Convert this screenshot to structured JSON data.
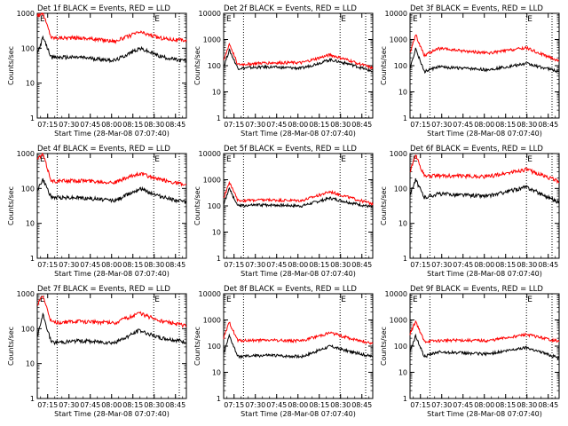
{
  "chart_data": [
    {
      "type": "line",
      "title": "Det 1f BLACK = Events, RED = LLD",
      "ylabel": "Counts/sec",
      "xlabel": "Start Time (28-Mar-08 07:07:40)",
      "x_ticks": [
        "07:15",
        "07:30",
        "07:45",
        "08:00",
        "08:15",
        "08:30",
        "08:45"
      ],
      "y_ticks": [
        "1",
        "10",
        "100",
        "1000"
      ],
      "x_range_min": [
        0,
        105
      ],
      "y_range": [
        1,
        1000
      ],
      "y_scale": "log",
      "annotation": "E",
      "marker_lines_min": [
        14,
        82,
        100
      ],
      "series": [
        {
          "color": "#ff0000",
          "values": [
            {
              "t": 0,
              "v": 900
            },
            {
              "t": 4,
              "v": 1000
            },
            {
              "t": 10,
              "v": 200
            },
            {
              "t": 30,
              "v": 200
            },
            {
              "t": 55,
              "v": 160
            },
            {
              "t": 72,
              "v": 290
            },
            {
              "t": 86,
              "v": 200
            },
            {
              "t": 100,
              "v": 170
            },
            {
              "t": 105,
              "v": 170
            }
          ]
        },
        {
          "color": "#000000",
          "values": [
            {
              "t": 0,
              "v": 70
            },
            {
              "t": 4,
              "v": 200
            },
            {
              "t": 10,
              "v": 55
            },
            {
              "t": 30,
              "v": 55
            },
            {
              "t": 55,
              "v": 45
            },
            {
              "t": 72,
              "v": 100
            },
            {
              "t": 86,
              "v": 60
            },
            {
              "t": 100,
              "v": 45
            },
            {
              "t": 105,
              "v": 45
            }
          ]
        }
      ]
    },
    {
      "type": "line",
      "title": "Det 2f BLACK = Events, RED = LLD",
      "ylabel": "Counts/sec",
      "xlabel": "Start Time (28-Mar-08 07:07:40)",
      "x_ticks": [
        "07:15",
        "07:30",
        "07:45",
        "08:00",
        "08:15",
        "08:30",
        "08:45"
      ],
      "y_ticks": [
        "1",
        "10",
        "100",
        "1000",
        "10000"
      ],
      "x_range_min": [
        0,
        105
      ],
      "y_range": [
        1,
        10000
      ],
      "y_scale": "log",
      "annotation": "E",
      "marker_lines_min": [
        14,
        82,
        100
      ],
      "series": [
        {
          "color": "#ff0000",
          "values": [
            {
              "t": 0,
              "v": 150
            },
            {
              "t": 4,
              "v": 700
            },
            {
              "t": 10,
              "v": 110
            },
            {
              "t": 30,
              "v": 130
            },
            {
              "t": 55,
              "v": 130
            },
            {
              "t": 75,
              "v": 260
            },
            {
              "t": 90,
              "v": 150
            },
            {
              "t": 105,
              "v": 80
            }
          ]
        },
        {
          "color": "#000000",
          "values": [
            {
              "t": 0,
              "v": 90
            },
            {
              "t": 4,
              "v": 400
            },
            {
              "t": 10,
              "v": 80
            },
            {
              "t": 30,
              "v": 90
            },
            {
              "t": 55,
              "v": 80
            },
            {
              "t": 75,
              "v": 170
            },
            {
              "t": 90,
              "v": 110
            },
            {
              "t": 105,
              "v": 60
            }
          ]
        }
      ]
    },
    {
      "type": "line",
      "title": "Det 3f BLACK = Events, RED = LLD",
      "ylabel": "Counts/sec",
      "xlabel": "Start Time (28-Mar-08 07:07:40)",
      "x_ticks": [
        "07:15",
        "07:30",
        "07:45",
        "08:00",
        "08:15",
        "08:30",
        "08:45"
      ],
      "y_ticks": [
        "1",
        "10",
        "100",
        "1000",
        "10000"
      ],
      "x_range_min": [
        0,
        105
      ],
      "y_range": [
        1,
        10000
      ],
      "y_scale": "log",
      "annotation": "E",
      "marker_lines_min": [
        14,
        82,
        100
      ],
      "series": [
        {
          "color": "#ff0000",
          "values": [
            {
              "t": 0,
              "v": 300
            },
            {
              "t": 4,
              "v": 1500
            },
            {
              "t": 10,
              "v": 250
            },
            {
              "t": 20,
              "v": 450
            },
            {
              "t": 55,
              "v": 300
            },
            {
              "t": 82,
              "v": 480
            },
            {
              "t": 105,
              "v": 150
            }
          ]
        },
        {
          "color": "#000000",
          "values": [
            {
              "t": 0,
              "v": 80
            },
            {
              "t": 4,
              "v": 450
            },
            {
              "t": 10,
              "v": 60
            },
            {
              "t": 20,
              "v": 90
            },
            {
              "t": 55,
              "v": 70
            },
            {
              "t": 82,
              "v": 120
            },
            {
              "t": 105,
              "v": 60
            }
          ]
        }
      ]
    },
    {
      "type": "line",
      "title": "Det 4f BLACK = Events, RED = LLD",
      "ylabel": "Counts/sec",
      "xlabel": "Start Time (28-Mar-08 07:07:40)",
      "x_ticks": [
        "07:15",
        "07:30",
        "07:45",
        "08:00",
        "08:15",
        "08:30",
        "08:45"
      ],
      "y_ticks": [
        "1",
        "10",
        "100",
        "1000"
      ],
      "x_range_min": [
        0,
        105
      ],
      "y_range": [
        1,
        1000
      ],
      "y_scale": "log",
      "annotation": "E",
      "marker_lines_min": [
        14,
        82,
        100
      ],
      "series": [
        {
          "color": "#ff0000",
          "values": [
            {
              "t": 0,
              "v": 700
            },
            {
              "t": 4,
              "v": 950
            },
            {
              "t": 10,
              "v": 160
            },
            {
              "t": 30,
              "v": 170
            },
            {
              "t": 55,
              "v": 150
            },
            {
              "t": 72,
              "v": 270
            },
            {
              "t": 86,
              "v": 180
            },
            {
              "t": 100,
              "v": 140
            },
            {
              "t": 105,
              "v": 120
            }
          ]
        },
        {
          "color": "#000000",
          "values": [
            {
              "t": 0,
              "v": 90
            },
            {
              "t": 4,
              "v": 180
            },
            {
              "t": 10,
              "v": 55
            },
            {
              "t": 30,
              "v": 55
            },
            {
              "t": 55,
              "v": 45
            },
            {
              "t": 72,
              "v": 100
            },
            {
              "t": 86,
              "v": 60
            },
            {
              "t": 100,
              "v": 45
            },
            {
              "t": 105,
              "v": 40
            }
          ]
        }
      ]
    },
    {
      "type": "line",
      "title": "Det 5f BLACK = Events, RED = LLD",
      "ylabel": "Counts/sec",
      "xlabel": "Start Time (28-Mar-08 07:07:40)",
      "x_ticks": [
        "07:15",
        "07:30",
        "07:45",
        "08:00",
        "08:15",
        "08:30",
        "08:45"
      ],
      "y_ticks": [
        "1",
        "10",
        "100",
        "1000",
        "10000"
      ],
      "x_range_min": [
        0,
        105
      ],
      "y_range": [
        1,
        10000
      ],
      "y_scale": "log",
      "annotation": "E",
      "marker_lines_min": [
        14,
        82,
        100
      ],
      "series": [
        {
          "color": "#ff0000",
          "values": [
            {
              "t": 0,
              "v": 200
            },
            {
              "t": 4,
              "v": 800
            },
            {
              "t": 10,
              "v": 160
            },
            {
              "t": 30,
              "v": 170
            },
            {
              "t": 55,
              "v": 160
            },
            {
              "t": 75,
              "v": 350
            },
            {
              "t": 90,
              "v": 200
            },
            {
              "t": 105,
              "v": 120
            }
          ]
        },
        {
          "color": "#000000",
          "values": [
            {
              "t": 0,
              "v": 120
            },
            {
              "t": 4,
              "v": 450
            },
            {
              "t": 10,
              "v": 100
            },
            {
              "t": 30,
              "v": 110
            },
            {
              "t": 55,
              "v": 100
            },
            {
              "t": 75,
              "v": 200
            },
            {
              "t": 90,
              "v": 130
            },
            {
              "t": 105,
              "v": 90
            }
          ]
        }
      ]
    },
    {
      "type": "line",
      "title": "Det 6f BLACK = Events, RED = LLD",
      "ylabel": "Counts/sec",
      "xlabel": "Start Time (28-Mar-08 07:07:40)",
      "x_ticks": [
        "07:15",
        "07:30",
        "07:45",
        "08:00",
        "08:15",
        "08:30",
        "08:45"
      ],
      "y_ticks": [
        "1",
        "10",
        "100",
        "1000"
      ],
      "x_range_min": [
        0,
        105
      ],
      "y_range": [
        1,
        1000
      ],
      "y_scale": "log",
      "annotation": "E",
      "marker_lines_min": [
        14,
        82,
        100
      ],
      "series": [
        {
          "color": "#ff0000",
          "values": [
            {
              "t": 0,
              "v": 300
            },
            {
              "t": 4,
              "v": 900
            },
            {
              "t": 10,
              "v": 230
            },
            {
              "t": 30,
              "v": 230
            },
            {
              "t": 55,
              "v": 220
            },
            {
              "t": 82,
              "v": 350
            },
            {
              "t": 105,
              "v": 160
            }
          ]
        },
        {
          "color": "#000000",
          "values": [
            {
              "t": 0,
              "v": 70
            },
            {
              "t": 4,
              "v": 180
            },
            {
              "t": 10,
              "v": 55
            },
            {
              "t": 20,
              "v": 70
            },
            {
              "t": 55,
              "v": 60
            },
            {
              "t": 82,
              "v": 110
            },
            {
              "t": 105,
              "v": 40
            }
          ]
        }
      ]
    },
    {
      "type": "line",
      "title": "Det 7f BLACK = Events, RED = LLD",
      "ylabel": "Counts/sec",
      "xlabel": "Start Time (28-Mar-08 07:07:40)",
      "x_ticks": [
        "07:15",
        "07:30",
        "07:45",
        "08:00",
        "08:15",
        "08:30",
        "08:45"
      ],
      "y_ticks": [
        "1",
        "10",
        "100",
        "1000"
      ],
      "x_range_min": [
        0,
        105
      ],
      "y_range": [
        1,
        1000
      ],
      "y_scale": "log",
      "annotation": "E",
      "marker_lines_min": [
        14,
        82,
        100
      ],
      "series": [
        {
          "color": "#ff0000",
          "values": [
            {
              "t": 0,
              "v": 500
            },
            {
              "t": 4,
              "v": 850
            },
            {
              "t": 10,
              "v": 150
            },
            {
              "t": 30,
              "v": 160
            },
            {
              "t": 55,
              "v": 150
            },
            {
              "t": 72,
              "v": 280
            },
            {
              "t": 86,
              "v": 170
            },
            {
              "t": 100,
              "v": 130
            },
            {
              "t": 105,
              "v": 120
            }
          ]
        },
        {
          "color": "#000000",
          "values": [
            {
              "t": 0,
              "v": 60
            },
            {
              "t": 4,
              "v": 250
            },
            {
              "t": 10,
              "v": 40
            },
            {
              "t": 30,
              "v": 45
            },
            {
              "t": 55,
              "v": 40
            },
            {
              "t": 72,
              "v": 90
            },
            {
              "t": 86,
              "v": 55
            },
            {
              "t": 100,
              "v": 45
            },
            {
              "t": 105,
              "v": 40
            }
          ]
        }
      ]
    },
    {
      "type": "line",
      "title": "Det 8f BLACK = Events, RED = LLD",
      "ylabel": "Counts/sec",
      "xlabel": "Start Time (28-Mar-08 07:07:40)",
      "x_ticks": [
        "07:15",
        "07:30",
        "07:45",
        "08:00",
        "08:15",
        "08:30",
        "08:45"
      ],
      "y_ticks": [
        "1",
        "10",
        "100",
        "1000",
        "10000"
      ],
      "x_range_min": [
        0,
        105
      ],
      "y_range": [
        1,
        10000
      ],
      "y_scale": "log",
      "annotation": "E",
      "marker_lines_min": [
        14,
        82,
        100
      ],
      "series": [
        {
          "color": "#ff0000",
          "values": [
            {
              "t": 0,
              "v": 200
            },
            {
              "t": 4,
              "v": 800
            },
            {
              "t": 10,
              "v": 160
            },
            {
              "t": 30,
              "v": 170
            },
            {
              "t": 55,
              "v": 160
            },
            {
              "t": 75,
              "v": 330
            },
            {
              "t": 90,
              "v": 190
            },
            {
              "t": 105,
              "v": 130
            }
          ]
        },
        {
          "color": "#000000",
          "values": [
            {
              "t": 0,
              "v": 50
            },
            {
              "t": 4,
              "v": 250
            },
            {
              "t": 10,
              "v": 40
            },
            {
              "t": 30,
              "v": 45
            },
            {
              "t": 55,
              "v": 40
            },
            {
              "t": 75,
              "v": 100
            },
            {
              "t": 90,
              "v": 60
            },
            {
              "t": 105,
              "v": 40
            }
          ]
        }
      ]
    },
    {
      "type": "line",
      "title": "Det 9f BLACK = Events, RED = LLD",
      "ylabel": "Counts/sec",
      "xlabel": "Start Time (28-Mar-08 07:07:40)",
      "x_ticks": [
        "07:15",
        "07:30",
        "07:45",
        "08:00",
        "08:15",
        "08:30",
        "08:45"
      ],
      "y_ticks": [
        "1",
        "10",
        "100",
        "1000",
        "10000"
      ],
      "x_range_min": [
        0,
        105
      ],
      "y_range": [
        1,
        10000
      ],
      "y_scale": "log",
      "annotation": "E",
      "marker_lines_min": [
        14,
        82,
        100
      ],
      "series": [
        {
          "color": "#ff0000",
          "values": [
            {
              "t": 0,
              "v": 300
            },
            {
              "t": 4,
              "v": 900
            },
            {
              "t": 10,
              "v": 150
            },
            {
              "t": 30,
              "v": 170
            },
            {
              "t": 55,
              "v": 160
            },
            {
              "t": 82,
              "v": 280
            },
            {
              "t": 105,
              "v": 150
            }
          ]
        },
        {
          "color": "#000000",
          "values": [
            {
              "t": 0,
              "v": 60
            },
            {
              "t": 4,
              "v": 250
            },
            {
              "t": 10,
              "v": 40
            },
            {
              "t": 20,
              "v": 60
            },
            {
              "t": 55,
              "v": 50
            },
            {
              "t": 82,
              "v": 90
            },
            {
              "t": 105,
              "v": 35
            }
          ]
        }
      ]
    }
  ]
}
